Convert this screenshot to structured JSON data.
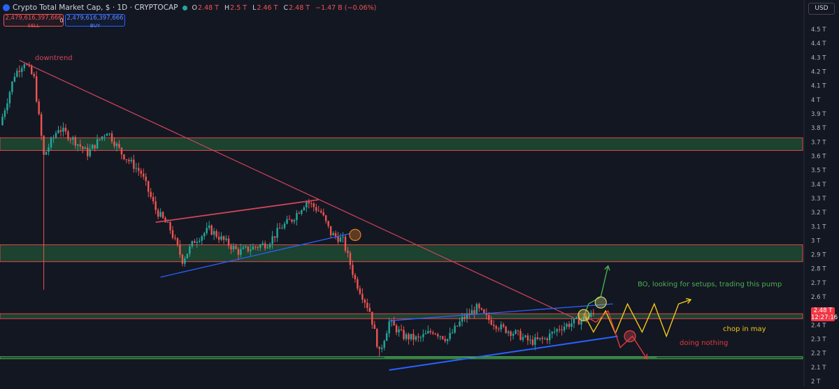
{
  "header": {
    "title": "Crypto Total Market Cap, $ · 1D · CRYPTOCAP",
    "ohlc": [
      {
        "k": "O",
        "v": "2.48 T"
      },
      {
        "k": "H",
        "v": "2.5 T"
      },
      {
        "k": "L",
        "v": "2.46 T"
      },
      {
        "k": "C",
        "v": "2.48 T"
      },
      {
        "k": "",
        "v": "−1.47 B (−0.06%)"
      }
    ],
    "sell_value": "2,479,616,397,666",
    "sell_label": "SELL",
    "spread": "0",
    "buy_value": "2,479,616,397,666",
    "buy_label": "BUY",
    "currency": "USD"
  },
  "price_tag": {
    "value": "2.48 T",
    "countdown": "12:27:16"
  },
  "annotations": {
    "downtrend": "downtrend",
    "bo": "BO, looking for setups, trading this pump",
    "chop": "chop in may",
    "nothing": "doing nothing"
  },
  "colors": {
    "up": "#26a69a",
    "down": "#ef5350",
    "zone_fill": "#1f4a32",
    "zone_border": "#e0454a",
    "trend_red": "#d0455a",
    "channel_blue": "#2962ff",
    "scenario_green": "#4caf50",
    "scenario_yellow": "#f5c518",
    "scenario_red": "#e03b3b"
  },
  "chart_data": {
    "type": "candlestick",
    "ylim": [
      2.0,
      4.55
    ],
    "yticks": [
      {
        "v": 2.0,
        "label": "2 T"
      },
      {
        "v": 2.1,
        "label": "2.1 T"
      },
      {
        "v": 2.2,
        "label": "2.2 T"
      },
      {
        "v": 2.3,
        "label": "2.3 T"
      },
      {
        "v": 2.4,
        "label": "2.4 T"
      },
      {
        "v": 2.6,
        "label": "2.6 T"
      },
      {
        "v": 2.7,
        "label": "2.7 T"
      },
      {
        "v": 2.8,
        "label": "2.8 T"
      },
      {
        "v": 2.9,
        "label": "2.9 T"
      },
      {
        "v": 3.0,
        "label": "3 T"
      },
      {
        "v": 3.1,
        "label": "3.1 T"
      },
      {
        "v": 3.2,
        "label": "3.2 T"
      },
      {
        "v": 3.3,
        "label": "3.3 T"
      },
      {
        "v": 3.4,
        "label": "3.4 T"
      },
      {
        "v": 3.5,
        "label": "3.5 T"
      },
      {
        "v": 3.6,
        "label": "3.6 T"
      },
      {
        "v": 3.7,
        "label": "3.7 T"
      },
      {
        "v": 3.8,
        "label": "3.8 T"
      },
      {
        "v": 3.9,
        "label": "3.9 T"
      },
      {
        "v": 4.0,
        "label": "4 T"
      },
      {
        "v": 4.1,
        "label": "4.1 T"
      },
      {
        "v": 4.2,
        "label": "4.2 T"
      },
      {
        "v": 4.3,
        "label": "4.3 T"
      },
      {
        "v": 4.4,
        "label": "4.4 T"
      },
      {
        "v": 4.5,
        "label": "4.5 T"
      }
    ],
    "price_path": [
      [
        0,
        3.82
      ],
      [
        6,
        4.18
      ],
      [
        10,
        4.27
      ],
      [
        14,
        4.15
      ],
      [
        18,
        3.6
      ],
      [
        24,
        3.8
      ],
      [
        30,
        3.72
      ],
      [
        36,
        3.62
      ],
      [
        44,
        3.78
      ],
      [
        50,
        3.62
      ],
      [
        58,
        3.48
      ],
      [
        64,
        3.22
      ],
      [
        70,
        3.08
      ],
      [
        75,
        2.86
      ],
      [
        80,
        3.0
      ],
      [
        86,
        3.08
      ],
      [
        92,
        3.0
      ],
      [
        98,
        2.92
      ],
      [
        104,
        2.95
      ],
      [
        110,
        2.98
      ],
      [
        116,
        3.1
      ],
      [
        120,
        3.15
      ],
      [
        126,
        3.28
      ],
      [
        132,
        3.2
      ],
      [
        136,
        3.05
      ],
      [
        141,
        3.0
      ],
      [
        146,
        2.72
      ],
      [
        152,
        2.5
      ],
      [
        156,
        2.2
      ],
      [
        160,
        2.42
      ],
      [
        166,
        2.32
      ],
      [
        172,
        2.3
      ],
      [
        178,
        2.36
      ],
      [
        184,
        2.3
      ],
      [
        190,
        2.44
      ],
      [
        196,
        2.52
      ],
      [
        200,
        2.45
      ],
      [
        206,
        2.38
      ],
      [
        212,
        2.34
      ],
      [
        218,
        2.28
      ],
      [
        224,
        2.3
      ],
      [
        230,
        2.38
      ],
      [
        236,
        2.42
      ],
      [
        241,
        2.45
      ],
      [
        244,
        2.48
      ]
    ],
    "zones": [
      {
        "top": 3.73,
        "bottom": 3.64
      },
      {
        "top": 2.97,
        "bottom": 2.85
      },
      {
        "top": 2.48,
        "bottom": 2.445
      },
      {
        "top": 2.175,
        "bottom": 2.16
      }
    ],
    "trendlines": [
      {
        "kind": "downtrend",
        "from": [
          8,
          4.28
        ],
        "to": [
          236,
          2.45
        ]
      },
      {
        "kind": "rising-wedge-top",
        "from": [
          64,
          3.13
        ],
        "to": [
          131,
          3.29
        ]
      },
      {
        "kind": "channel-bottom",
        "from": [
          66,
          2.74
        ],
        "to": [
          144,
          3.05
        ]
      },
      {
        "kind": "channel-top",
        "from": [
          160,
          2.43
        ],
        "to": [
          252,
          2.55
        ]
      },
      {
        "kind": "channel-bottom",
        "from": [
          160,
          2.08
        ],
        "to": [
          254,
          2.32
        ]
      },
      {
        "kind": "range-bottom",
        "from": [
          158,
          2.17
        ],
        "to": [
          270,
          2.17
        ]
      }
    ],
    "scenarios": [
      {
        "name": "BO",
        "points": [
          [
            240,
            2.46
          ],
          [
            242,
            2.55
          ],
          [
            247,
            2.6
          ],
          [
            250,
            2.82
          ]
        ]
      },
      {
        "name": "chop",
        "points": [
          [
            240,
            2.48
          ],
          [
            244,
            2.35
          ],
          [
            249,
            2.5
          ],
          [
            253,
            2.34
          ],
          [
            258,
            2.55
          ],
          [
            264,
            2.35
          ],
          [
            269,
            2.55
          ],
          [
            274,
            2.32
          ],
          [
            279,
            2.55
          ],
          [
            284,
            2.58
          ]
        ]
      },
      {
        "name": "nothing",
        "points": [
          [
            240,
            2.47
          ],
          [
            245,
            2.42
          ],
          [
            250,
            2.5
          ],
          [
            255,
            2.24
          ],
          [
            260,
            2.32
          ],
          [
            266,
            2.16
          ]
        ]
      }
    ],
    "circles": [
      [
        146,
        3.04
      ],
      [
        240,
        2.47
      ],
      [
        247,
        2.56
      ],
      [
        259,
        2.32
      ]
    ],
    "x_range": [
      0,
      330
    ]
  }
}
